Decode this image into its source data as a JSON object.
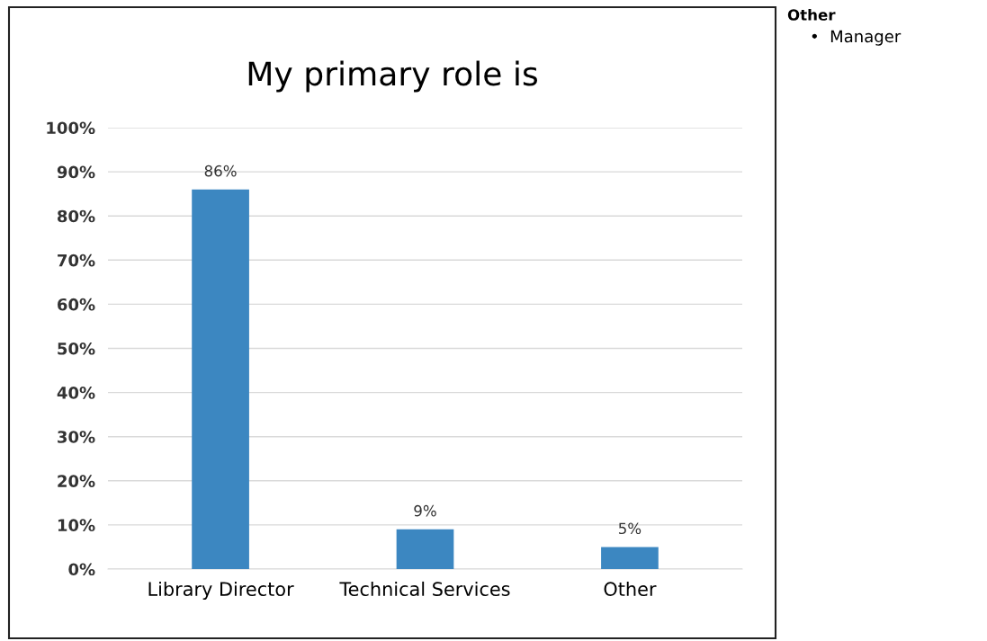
{
  "chart_data": {
    "type": "bar",
    "title": "My primary role is",
    "categories": [
      "Library Director",
      "Technical Services",
      "Other"
    ],
    "values": [
      86,
      9,
      5
    ],
    "value_labels": [
      "86%",
      "9%",
      "5%"
    ],
    "color": "#3c87c1",
    "ylim": [
      0,
      100
    ],
    "yticks": [
      {
        "value": 0,
        "label": "0%"
      },
      {
        "value": 10,
        "label": "10%"
      },
      {
        "value": 20,
        "label": "20%"
      },
      {
        "value": 30,
        "label": "30%"
      },
      {
        "value": 40,
        "label": "40%"
      },
      {
        "value": 50,
        "label": "50%"
      },
      {
        "value": 60,
        "label": "60%"
      },
      {
        "value": 70,
        "label": "70%"
      },
      {
        "value": 80,
        "label": "80%"
      },
      {
        "value": 90,
        "label": "90%"
      },
      {
        "value": 100,
        "label": "100%"
      }
    ],
    "grid": "y",
    "annotations": [
      "Other",
      "•  Manager"
    ]
  }
}
